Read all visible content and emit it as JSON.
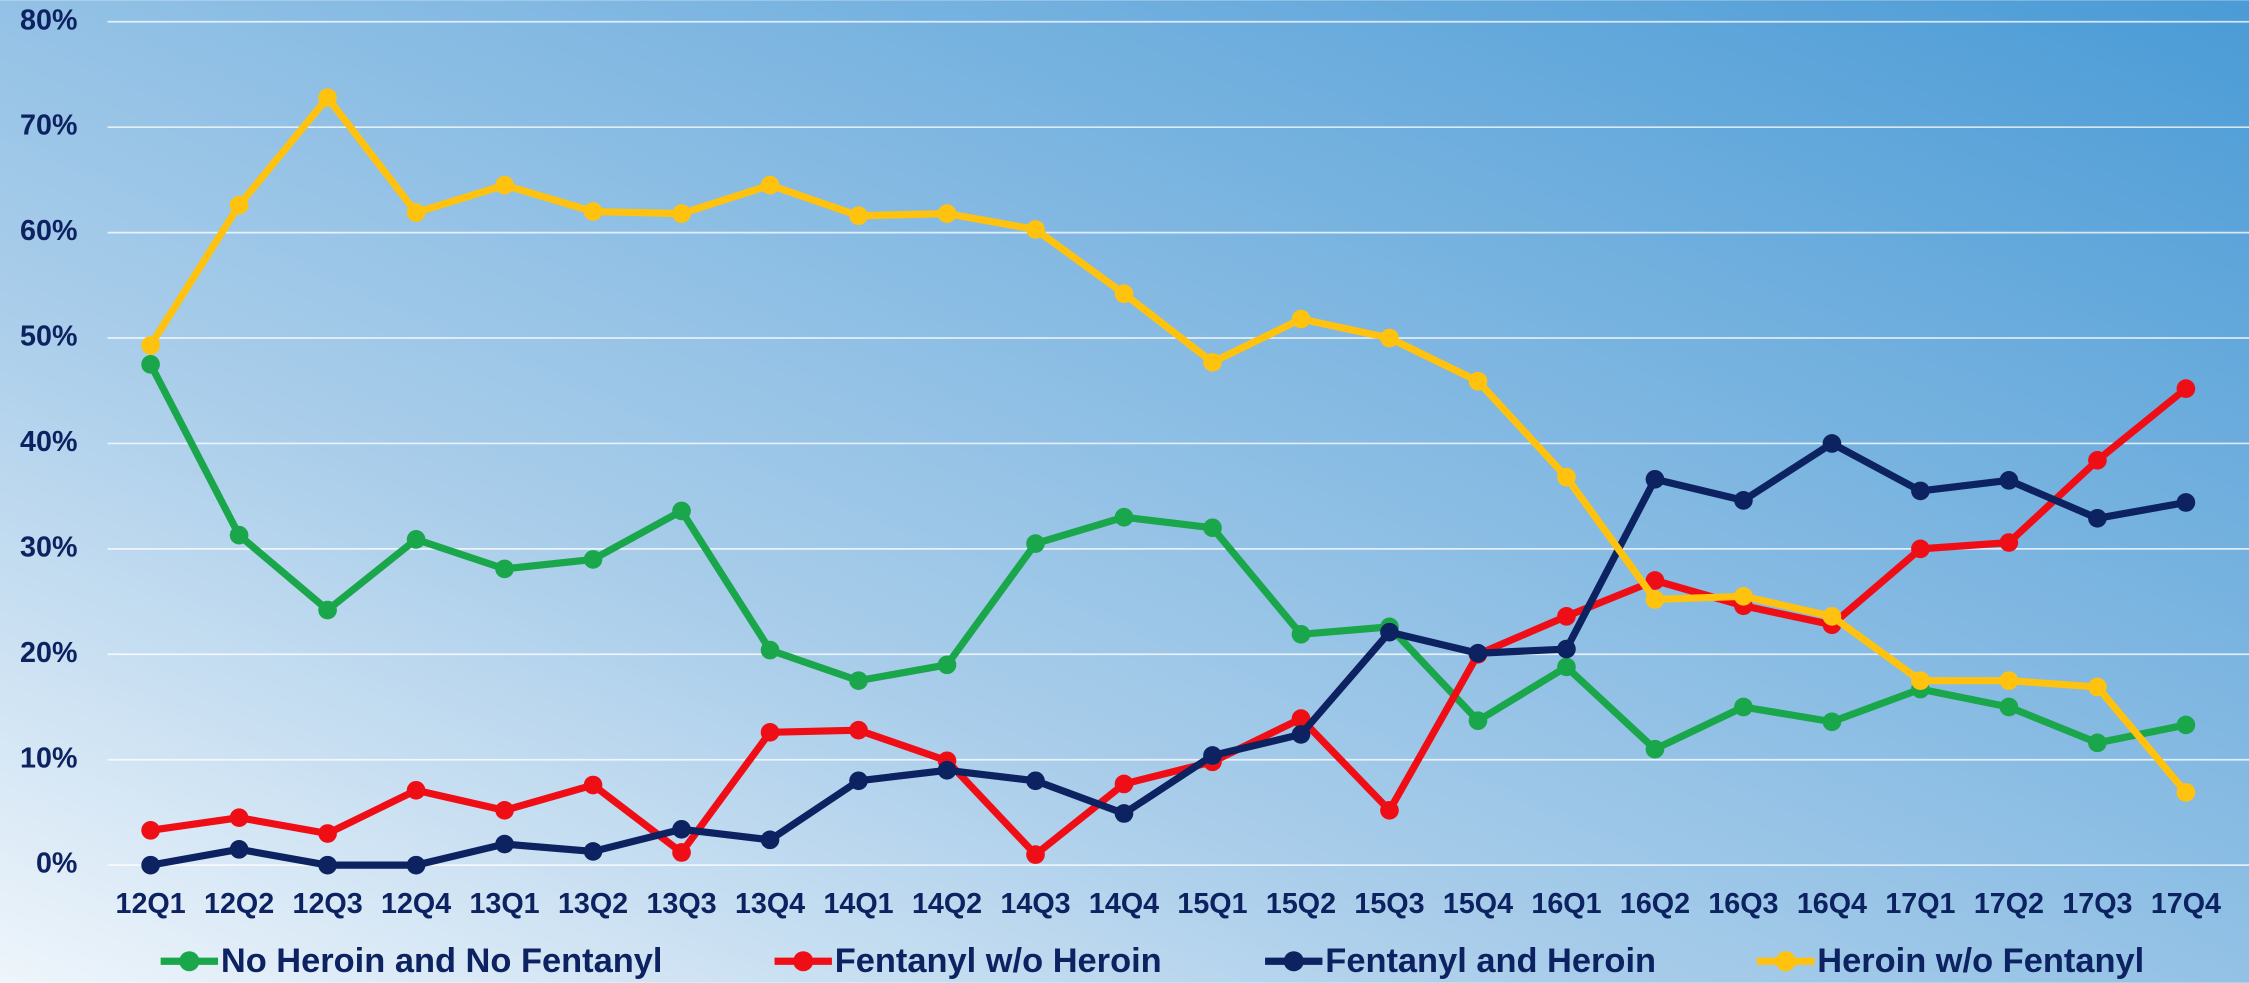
{
  "chart_data": {
    "type": "line",
    "categories": [
      "12Q1",
      "12Q2",
      "12Q3",
      "12Q4",
      "13Q1",
      "13Q2",
      "13Q3",
      "13Q4",
      "14Q1",
      "14Q2",
      "14Q3",
      "14Q4",
      "15Q1",
      "15Q2",
      "15Q3",
      "15Q4",
      "16Q1",
      "16Q2",
      "16Q3",
      "16Q4",
      "17Q1",
      "17Q2",
      "17Q3",
      "17Q4"
    ],
    "series": [
      {
        "name": "No Heroin and No Fentanyl",
        "color": "#1aa64a",
        "values": [
          47.5,
          31.3,
          24.2,
          30.9,
          28.1,
          29.0,
          33.6,
          20.4,
          17.5,
          19.0,
          30.5,
          33.0,
          32.0,
          21.9,
          22.6,
          13.7,
          18.8,
          11.0,
          15.0,
          13.6,
          16.7,
          15.0,
          11.6,
          13.3
        ]
      },
      {
        "name": "Fentanyl w/o Heroin",
        "color": "#f00e16",
        "values": [
          3.3,
          4.5,
          3.0,
          7.1,
          5.2,
          7.6,
          1.2,
          12.6,
          12.8,
          9.9,
          1.0,
          7.7,
          9.8,
          13.9,
          5.2,
          20.0,
          23.6,
          27.0,
          24.6,
          22.8,
          30.0,
          30.6,
          38.4,
          45.2
        ]
      },
      {
        "name": "Fentanyl and Heroin",
        "color": "#0d2260",
        "values": [
          0,
          1.5,
          0,
          0,
          2.0,
          1.3,
          3.4,
          2.4,
          8.0,
          9.0,
          8.0,
          4.9,
          10.4,
          12.4,
          22.1,
          20.1,
          20.5,
          36.6,
          34.6,
          40.0,
          35.5,
          36.5,
          32.9,
          34.4
        ]
      },
      {
        "name": "Heroin w/o Fentanyl",
        "color": "#ffc20e",
        "values": [
          49.3,
          62.6,
          72.8,
          61.9,
          64.5,
          62.0,
          61.8,
          64.5,
          61.6,
          61.8,
          60.3,
          54.2,
          47.7,
          51.8,
          50.0,
          45.9,
          36.8,
          25.2,
          25.5,
          23.6,
          17.5,
          17.5,
          16.9,
          6.9
        ]
      }
    ],
    "ylim": [
      0,
      80
    ],
    "yticks": [
      {
        "value": 0,
        "label": "0%"
      },
      {
        "value": 10,
        "label": "10%"
      },
      {
        "value": 20,
        "label": "20%"
      },
      {
        "value": 30,
        "label": "30%"
      },
      {
        "value": 40,
        "label": "40%"
      },
      {
        "value": 50,
        "label": "50%"
      },
      {
        "value": 60,
        "label": "60%"
      },
      {
        "value": 70,
        "label": "70%"
      },
      {
        "value": 80,
        "label": "80%"
      }
    ],
    "grid": true,
    "legend": "bottom"
  }
}
